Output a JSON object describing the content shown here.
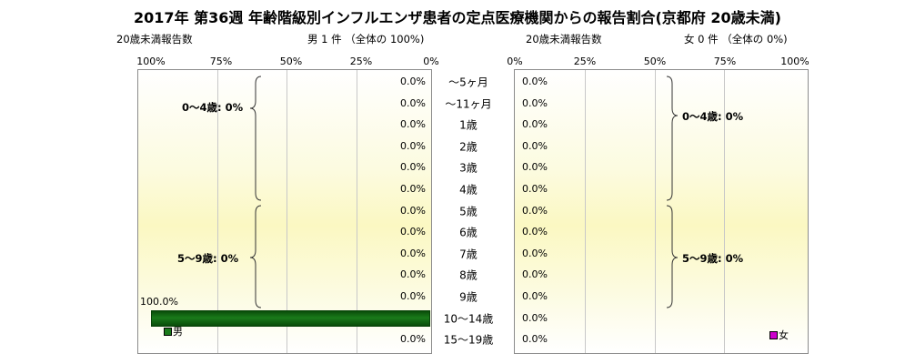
{
  "title": "2017年 第36週 年齢階級別インフルエンザ患者の定点医療機関からの報告割合(京都府 20歳未満)",
  "left_panel": {
    "count_label": "20歳未満報告数",
    "summary": "男 1 件  （全体の  100%)",
    "ticks": [
      "100%",
      "75%",
      "50%",
      "25%",
      "0%"
    ]
  },
  "right_panel": {
    "count_label": "20歳未満報告数",
    "summary": "女 0 件  （全体の  0%)",
    "ticks": [
      "0%",
      "25%",
      "50%",
      "75%",
      "100%"
    ]
  },
  "groups": {
    "left_0_4": "0～4歳: 0%",
    "left_5_9": "5～9歳: 0%",
    "right_0_4": "0～4歳: 0%",
    "right_5_9": "5～9歳: 0%"
  },
  "chart_data": {
    "type": "bar",
    "orientation": "horizontal",
    "categories": [
      "～5ヶ月",
      "～11ヶ月",
      "1歳",
      "2歳",
      "3歳",
      "4歳",
      "5歳",
      "6歳",
      "7歳",
      "8歳",
      "9歳",
      "10～14歳",
      "15～19歳"
    ],
    "series": [
      {
        "name": "男",
        "values": [
          0,
          0,
          0,
          0,
          0,
          0,
          0,
          0,
          0,
          0,
          0,
          100,
          0
        ],
        "labels": [
          "0.0%",
          "0.0%",
          "0.0%",
          "0.0%",
          "0.0%",
          "0.0%",
          "0.0%",
          "0.0%",
          "0.0%",
          "0.0%",
          "0.0%",
          "100.0%",
          "0.0%"
        ],
        "color": "#1a7a1a"
      },
      {
        "name": "女",
        "values": [
          0,
          0,
          0,
          0,
          0,
          0,
          0,
          0,
          0,
          0,
          0,
          0,
          0
        ],
        "labels": [
          "0.0%",
          "0.0%",
          "0.0%",
          "0.0%",
          "0.0%",
          "0.0%",
          "0.0%",
          "0.0%",
          "0.0%",
          "0.0%",
          "0.0%",
          "0.0%",
          "0.0%"
        ],
        "color": "#cc00cc"
      }
    ],
    "xlim": [
      0,
      100
    ],
    "grid": true
  }
}
